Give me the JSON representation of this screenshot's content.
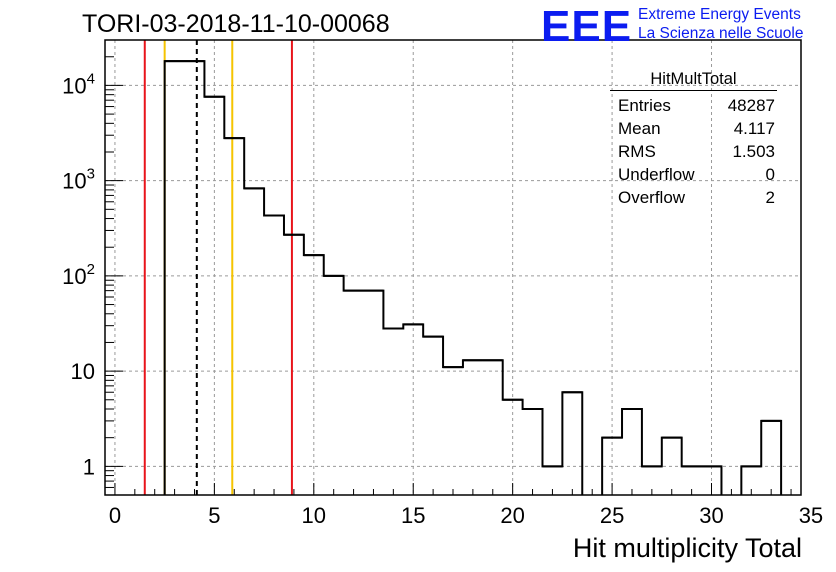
{
  "header": {
    "title": "TORI-03-2018-11-10-00068",
    "logo": "EEE",
    "logo_line1": "Extreme Energy Events",
    "logo_line2": "La Scienza nelle Scuole"
  },
  "stats": {
    "name": "HitMultTotal",
    "rows": [
      {
        "label": "Entries",
        "value": "48287"
      },
      {
        "label": "Mean",
        "value": "4.117"
      },
      {
        "label": "RMS",
        "value": "1.503"
      },
      {
        "label": "Underflow",
        "value": "0"
      },
      {
        "label": "Overflow",
        "value": "2"
      }
    ]
  },
  "chart_data": {
    "type": "histogram",
    "title": "TORI-03-2018-11-10-00068",
    "xlabel": "Hit multiplicity Total",
    "ylabel": "",
    "xlim": [
      -0.5,
      34.5
    ],
    "ylim": [
      0.5,
      30000
    ],
    "yscale": "log",
    "grid": true,
    "bin_width": 1,
    "bin_centers": [
      0,
      1,
      2,
      3,
      4,
      5,
      6,
      7,
      8,
      9,
      10,
      11,
      12,
      13,
      14,
      15,
      16,
      17,
      18,
      19,
      20,
      21,
      22,
      23,
      24,
      25,
      26,
      27,
      28,
      29,
      30,
      31,
      32,
      33,
      34
    ],
    "counts": [
      0,
      0,
      0,
      18000,
      18000,
      7600,
      2800,
      830,
      430,
      270,
      165,
      100,
      70,
      70,
      28,
      31,
      23,
      11,
      13,
      13,
      5,
      4,
      1,
      6,
      0,
      2,
      4,
      1,
      2,
      1,
      1,
      0,
      1,
      3,
      0
    ],
    "x_ticks": [
      0,
      5,
      10,
      15,
      20,
      25,
      30,
      35
    ],
    "x_tick_labels": [
      "0",
      "5",
      "10",
      "15",
      "20",
      "25",
      "30",
      "35"
    ],
    "y_ticks": [
      1,
      10,
      100,
      1000,
      10000
    ],
    "y_tick_labels": [
      {
        "base": "1",
        "exp": ""
      },
      {
        "base": "10",
        "exp": ""
      },
      {
        "base": "10",
        "exp": "2"
      },
      {
        "base": "10",
        "exp": "3"
      },
      {
        "base": "10",
        "exp": "4"
      }
    ],
    "vertical_lines": [
      {
        "x": 1.5,
        "color": "#e8141b",
        "style": "solid"
      },
      {
        "x": 2.5,
        "color": "#f5c400",
        "style": "solid"
      },
      {
        "x": 4.117,
        "color": "#000000",
        "style": "dashed"
      },
      {
        "x": 5.9,
        "color": "#f5c400",
        "style": "solid"
      },
      {
        "x": 8.9,
        "color": "#e8141b",
        "style": "solid"
      }
    ]
  }
}
